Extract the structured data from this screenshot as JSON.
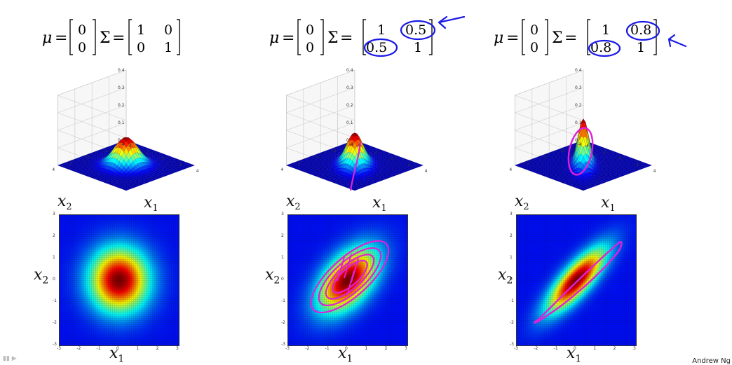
{
  "panels": [
    {
      "mu_symbol": "μ",
      "sigma_symbol": "Σ",
      "mu": [
        "0",
        "0"
      ],
      "sigma": [
        [
          "1",
          "0"
        ],
        [
          "0",
          "1"
        ]
      ],
      "rho": 0.0,
      "annotations": []
    },
    {
      "mu_symbol": "μ",
      "sigma_symbol": "Σ",
      "mu": [
        "0",
        "0"
      ],
      "sigma": [
        [
          "1",
          "0.5"
        ],
        [
          "0.5",
          "1"
        ]
      ],
      "rho": 0.5,
      "annotations": [
        "circle-off-diagonal",
        "arrow"
      ]
    },
    {
      "mu_symbol": "μ",
      "sigma_symbol": "Σ",
      "mu": [
        "0",
        "0"
      ],
      "sigma": [
        [
          "1",
          "0.8"
        ],
        [
          "0.8",
          "1"
        ]
      ],
      "rho": 0.8,
      "annotations": [
        "circle-off-diagonal",
        "arrow"
      ]
    }
  ],
  "surface_z_ticks": [
    "0",
    "0.1",
    "0.2",
    "0.3",
    "0.4"
  ],
  "surface_xy_ticks": [
    "4",
    "2",
    "0",
    "-2",
    "-4"
  ],
  "heat_ticks": [
    "-3",
    "-2",
    "-1",
    "0",
    "1",
    "2",
    "3"
  ],
  "labels": {
    "x1": "x",
    "x1_sub": "1",
    "x2": "x",
    "x2_sub": "2"
  },
  "footer": "Andrew Ng",
  "colors": {
    "annotation_blue": "#1a1ae6",
    "annotation_magenta": "#e020d8"
  }
}
